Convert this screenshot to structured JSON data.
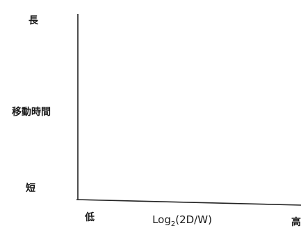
{
  "chart_data": {
    "type": "line",
    "title": "",
    "xlabel": "Log₂(2D/W)",
    "xlabel_parts": {
      "base": "Log",
      "sub": "2",
      "rest": "(2D/W)"
    },
    "ylabel": "移動時間",
    "x_ticks": [
      "低",
      "高"
    ],
    "y_ticks": [
      "長",
      "短"
    ],
    "series": [],
    "grid": false,
    "legend": "none",
    "colors": {
      "axis": "#222222",
      "text": "#1a1a1a"
    }
  }
}
